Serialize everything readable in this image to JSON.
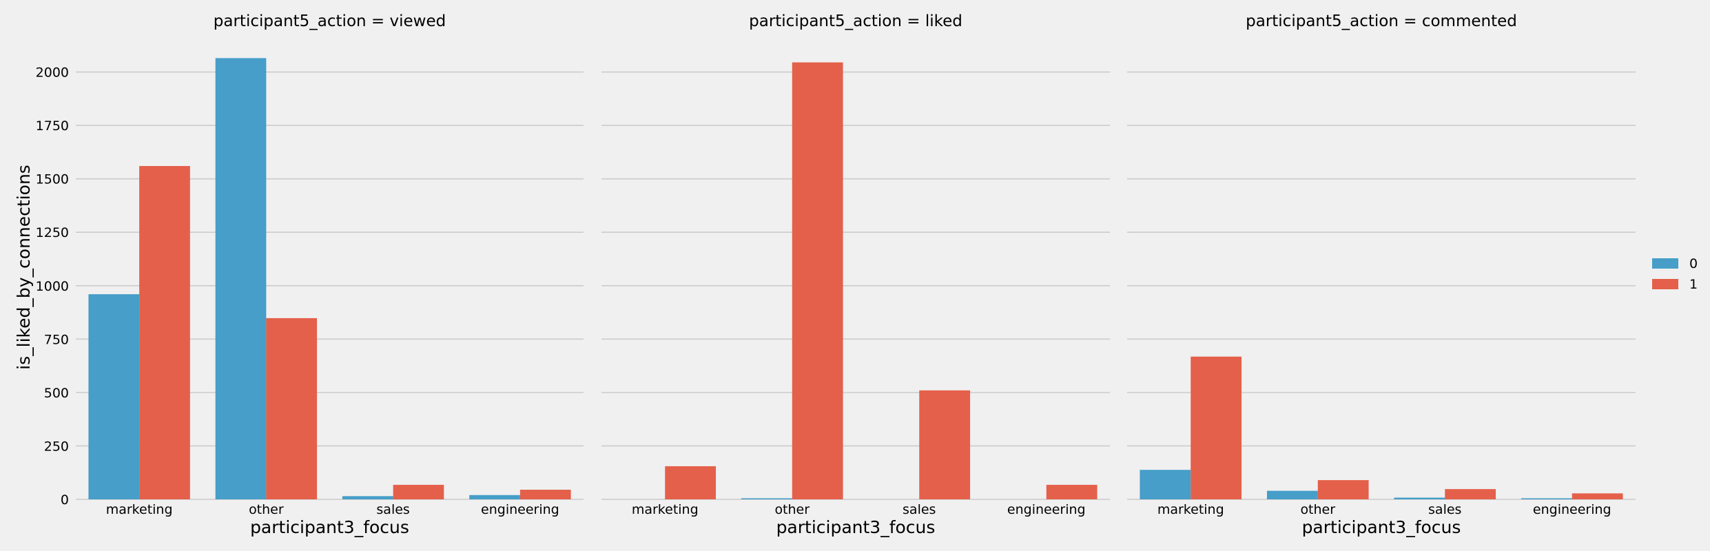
{
  "chart_data": {
    "type": "bar",
    "facet_variable": "participant5_action",
    "xlabel": "participant3_focus",
    "ylabel": "is_liked_by_connections",
    "categories": [
      "marketing",
      "other",
      "sales",
      "engineering"
    ],
    "ylim": [
      0,
      2150
    ],
    "yticks": [
      0,
      250,
      500,
      750,
      1000,
      1250,
      1500,
      1750,
      2000
    ],
    "grid": true,
    "legend_position": "right",
    "colors": {
      "0": "#469ec9",
      "1": "#e4604a"
    },
    "panels": [
      {
        "title": "participant5_action = viewed",
        "series": [
          {
            "name": "0",
            "values": [
              960,
              2065,
              15,
              20
            ]
          },
          {
            "name": "1",
            "values": [
              1560,
              848,
              68,
              45
            ]
          }
        ]
      },
      {
        "title": "participant5_action = liked",
        "series": [
          {
            "name": "0",
            "values": [
              0,
              5,
              0,
              0
            ]
          },
          {
            "name": "1",
            "values": [
              155,
              2045,
              510,
              68
            ]
          }
        ]
      },
      {
        "title": "participant5_action = commented",
        "series": [
          {
            "name": "0",
            "values": [
              138,
              40,
              8,
              5
            ]
          },
          {
            "name": "1",
            "values": [
              668,
              90,
              48,
              28
            ]
          }
        ]
      }
    ]
  }
}
